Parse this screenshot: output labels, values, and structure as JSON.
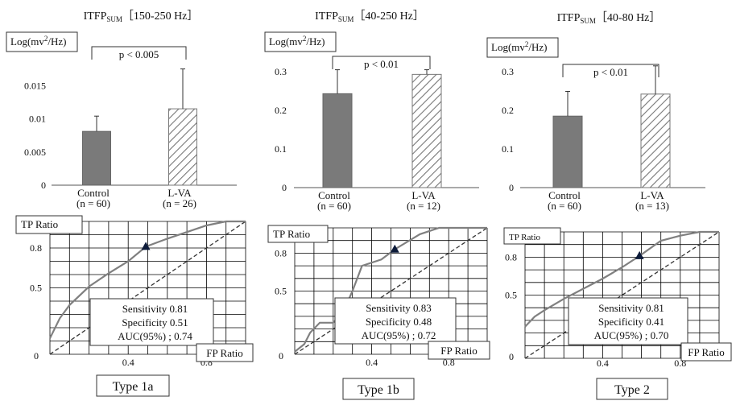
{
  "colors": {
    "control_bar": "#7a7a7a",
    "lva_hatch": "#777777",
    "roc_curve": "#808080",
    "grid": "#000000"
  },
  "bar_titles": [
    {
      "main": "ITFP",
      "sub": "SUM",
      "range": "［150-250 Hz］"
    },
    {
      "main": "ITFP",
      "sub": "SUM",
      "range": "［40-250 Hz］"
    },
    {
      "main": "ITFP",
      "sub": "SUM",
      "range": "［40-80 Hz］"
    }
  ],
  "roc_labels": {
    "y": "TP Ratio",
    "x": "FP Ratio"
  },
  "type_labels": [
    "Type 1a",
    "Type 1b",
    "Type 2"
  ],
  "chart_data": [
    {
      "type": "bar",
      "ylabel": "Log(mv²/Hz)",
      "categories": [
        {
          "name": "Control",
          "n": "(n = 60)"
        },
        {
          "name": "L-VA",
          "n": "(n = 26)"
        }
      ],
      "values": [
        0.0081,
        0.0115
      ],
      "error": [
        0.0023,
        0.006
      ],
      "ylim": [
        0,
        0.02
      ],
      "yticks": [
        0,
        0.005,
        0.01,
        0.015
      ],
      "ytick_labels": [
        "0",
        "0.005",
        "0.01",
        "0.015"
      ],
      "significance": "p < 0.005"
    },
    {
      "type": "bar",
      "ylabel": "Log(mv²/Hz)",
      "categories": [
        {
          "name": "Control",
          "n": "(n = 60)"
        },
        {
          "name": "L-VA",
          "n": "(n = 12)"
        }
      ],
      "values": [
        0.243,
        0.293
      ],
      "error": [
        0.062,
        0.012
      ],
      "ylim": [
        0,
        0.35
      ],
      "yticks": [
        0,
        0.1,
        0.2,
        0.3
      ],
      "ytick_labels": [
        "0",
        "0.1",
        "0.2",
        "0.3"
      ],
      "significance": "p < 0.01"
    },
    {
      "type": "bar",
      "ylabel": "Log(mv²/Hz)",
      "categories": [
        {
          "name": "Control",
          "n": "(n = 60)"
        },
        {
          "name": "L-VA",
          "n": "(n = 13)"
        }
      ],
      "values": [
        0.185,
        0.242
      ],
      "error": [
        0.064,
        0.073
      ],
      "ylim": [
        0,
        0.35
      ],
      "yticks": [
        0,
        0.1,
        0.2,
        0.3
      ],
      "ytick_labels": [
        "0",
        "0.1",
        "0.2",
        "0.3"
      ],
      "significance": "p < 0.01"
    },
    {
      "type": "line",
      "title": "Type 1a",
      "xlabel": "FP Ratio",
      "ylabel": "TP Ratio",
      "xlim": [
        0,
        1
      ],
      "ylim": [
        0,
        1
      ],
      "xticks": [
        0.4,
        0.8
      ],
      "yticks": [
        0.5,
        0.8
      ],
      "curve": [
        [
          0,
          0.12
        ],
        [
          0.05,
          0.27
        ],
        [
          0.1,
          0.37
        ],
        [
          0.2,
          0.51
        ],
        [
          0.3,
          0.61
        ],
        [
          0.4,
          0.7
        ],
        [
          0.49,
          0.81
        ],
        [
          0.6,
          0.87
        ],
        [
          0.7,
          0.92
        ],
        [
          0.8,
          0.97
        ],
        [
          0.9,
          1.0
        ],
        [
          1.0,
          1.0
        ]
      ],
      "operating_point": [
        0.49,
        0.81
      ],
      "sensitivity": "Sensitivity 0.81",
      "specificity": "Specificity 0.51",
      "auc": "AUC(95%) ; 0.74"
    },
    {
      "type": "line",
      "title": "Type 1b",
      "xlabel": "FP Ratio",
      "ylabel": "TP Ratio",
      "xlim": [
        0,
        1
      ],
      "ylim": [
        0,
        1
      ],
      "xticks": [
        0.4,
        0.8
      ],
      "yticks": [
        0.5,
        0.8
      ],
      "curve": [
        [
          0,
          0.02
        ],
        [
          0.05,
          0.08
        ],
        [
          0.08,
          0.17
        ],
        [
          0.13,
          0.25
        ],
        [
          0.2,
          0.25
        ],
        [
          0.25,
          0.33
        ],
        [
          0.3,
          0.5
        ],
        [
          0.35,
          0.7
        ],
        [
          0.45,
          0.75
        ],
        [
          0.52,
          0.83
        ],
        [
          0.65,
          0.95
        ],
        [
          0.75,
          1.0
        ],
        [
          1.0,
          1.0
        ]
      ],
      "operating_point": [
        0.52,
        0.83
      ],
      "sensitivity": "Sensitivity 0.83",
      "specificity": "Specificity 0.48",
      "auc": "AUC(95%) ; 0.72"
    },
    {
      "type": "line",
      "title": "Type 2",
      "xlabel": "FP Ratio",
      "ylabel": "TP Ratio",
      "xlim": [
        0,
        1
      ],
      "ylim": [
        0,
        1
      ],
      "xticks": [
        0.4,
        0.8
      ],
      "yticks": [
        0.5,
        0.8
      ],
      "curve": [
        [
          0,
          0.25
        ],
        [
          0.05,
          0.33
        ],
        [
          0.1,
          0.38
        ],
        [
          0.2,
          0.47
        ],
        [
          0.3,
          0.55
        ],
        [
          0.4,
          0.63
        ],
        [
          0.5,
          0.72
        ],
        [
          0.59,
          0.81
        ],
        [
          0.7,
          0.93
        ],
        [
          0.8,
          0.97
        ],
        [
          0.9,
          1.0
        ],
        [
          1.0,
          1.0
        ]
      ],
      "operating_point": [
        0.59,
        0.81
      ],
      "sensitivity": "Sensitivity 0.81",
      "specificity": "Specificity 0.41",
      "auc": "AUC(95%) ; 0.70"
    }
  ]
}
